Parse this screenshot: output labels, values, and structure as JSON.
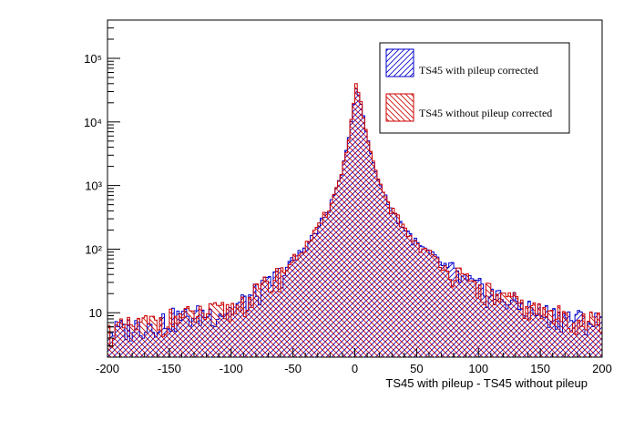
{
  "chart_data": {
    "type": "histogram",
    "title": "",
    "xlabel": "TS45 with pileup - TS45 without pileup",
    "ylabel": "",
    "xlim": [
      -200,
      200
    ],
    "ylim": [
      2,
      400000
    ],
    "y_scale": "log",
    "grid": false,
    "legend_position": "top-right",
    "x_ticks": [
      -200,
      -150,
      -100,
      -50,
      0,
      50,
      100,
      150,
      200
    ],
    "y_ticks": [
      {
        "value": 10,
        "label": "10"
      },
      {
        "value": 100,
        "label": "10²"
      },
      {
        "value": 1000,
        "label": "10³"
      },
      {
        "value": 10000,
        "label": "10⁴"
      },
      {
        "value": 100000,
        "label": "10⁵"
      }
    ],
    "bin_width": 2,
    "anchors": [
      {
        "x": -200,
        "y": 5
      },
      {
        "x": -150,
        "y": 8
      },
      {
        "x": -100,
        "y": 11
      },
      {
        "x": -80,
        "y": 20
      },
      {
        "x": -60,
        "y": 40
      },
      {
        "x": -40,
        "y": 110
      },
      {
        "x": -30,
        "y": 200
      },
      {
        "x": -20,
        "y": 500
      },
      {
        "x": -12,
        "y": 1300
      },
      {
        "x": -6,
        "y": 4000
      },
      {
        "x": -2,
        "y": 15000
      },
      {
        "x": 1,
        "y": 30000
      },
      {
        "x": 4,
        "y": 26000
      },
      {
        "x": 8,
        "y": 9000
      },
      {
        "x": 14,
        "y": 2600
      },
      {
        "x": 20,
        "y": 1100
      },
      {
        "x": 30,
        "y": 400
      },
      {
        "x": 50,
        "y": 120
      },
      {
        "x": 70,
        "y": 60
      },
      {
        "x": 90,
        "y": 30
      },
      {
        "x": 110,
        "y": 20
      },
      {
        "x": 150,
        "y": 10
      },
      {
        "x": 200,
        "y": 7
      }
    ],
    "series": [
      {
        "name": "TS45 with pileup corrected",
        "color": "#0000cc",
        "hatch": "forward-diagonal",
        "peak": 33000,
        "noise_seed": 3
      },
      {
        "name": "TS45 without pileup corrected",
        "color": "#cc0000",
        "hatch": "back-diagonal",
        "peak": 40000,
        "noise_seed": 11
      }
    ]
  }
}
